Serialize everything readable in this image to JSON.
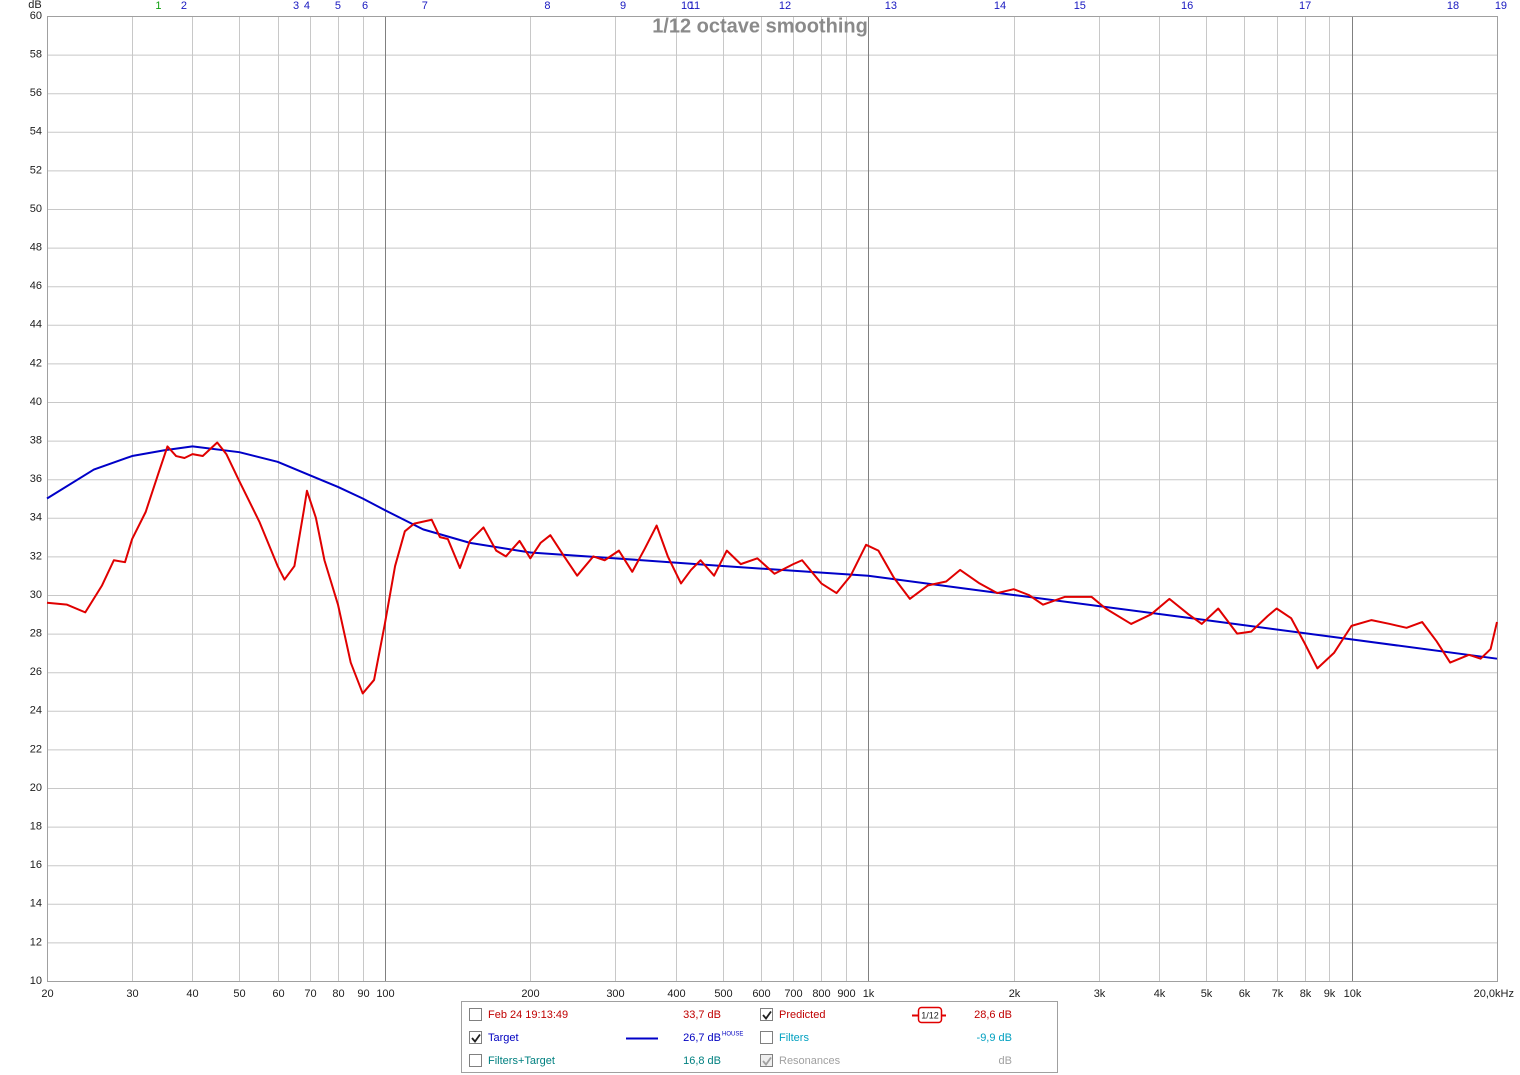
{
  "chart_data": {
    "type": "line",
    "title": "1/12 octave smoothing",
    "y_label": "dB",
    "log_x": true,
    "grid": true,
    "xlim": [
      20,
      20000
    ],
    "ylim": [
      10,
      60
    ],
    "xticks": [
      20,
      30,
      40,
      50,
      60,
      70,
      80,
      90,
      100,
      200,
      300,
      400,
      500,
      600,
      700,
      800,
      900,
      {
        "value": 1000,
        "label": "1k"
      },
      {
        "value": 2000,
        "label": "2k"
      },
      {
        "value": 3000,
        "label": "3k"
      },
      {
        "value": 4000,
        "label": "4k"
      },
      {
        "value": 5000,
        "label": "5k"
      },
      {
        "value": 6000,
        "label": "6k"
      },
      {
        "value": 7000,
        "label": "7k"
      },
      {
        "value": 8000,
        "label": "8k"
      },
      {
        "value": 9000,
        "label": "9k"
      },
      {
        "value": 10000,
        "label": "10k"
      },
      {
        "value": 20000,
        "label": "20,0kHz"
      }
    ],
    "yticks": [
      10,
      12,
      14,
      16,
      18,
      20,
      22,
      24,
      26,
      28,
      30,
      32,
      34,
      36,
      38,
      40,
      42,
      44,
      46,
      48,
      50,
      52,
      54,
      56,
      58,
      60
    ],
    "series": [
      {
        "name": "Predicted",
        "color": "#e00000",
        "x": [
          20,
          22,
          24,
          26,
          27.5,
          29,
          30,
          32,
          34,
          35.5,
          37,
          38.5,
          40,
          42,
          45,
          47,
          50,
          55,
          60,
          62,
          65,
          68,
          69,
          72,
          75,
          80,
          85,
          90,
          95,
          100,
          105,
          110,
          115,
          125,
          130,
          135,
          143,
          150,
          160,
          170,
          178,
          190,
          200,
          210,
          220,
          235,
          250,
          270,
          285,
          305,
          325,
          345,
          365,
          385,
          410,
          430,
          450,
          480,
          510,
          545,
          590,
          640,
          700,
          730,
          800,
          860,
          920,
          990,
          1050,
          1130,
          1220,
          1330,
          1450,
          1550,
          1700,
          1850,
          2000,
          2150,
          2300,
          2550,
          2900,
          3100,
          3500,
          3850,
          4200,
          4600,
          4900,
          5300,
          5800,
          6200,
          6700,
          7000,
          7500,
          8000,
          8500,
          9200,
          10000,
          11000,
          12000,
          13000,
          14000,
          15000,
          16000,
          17500,
          18500,
          19400,
          20000
        ],
        "values": [
          29.6,
          29.5,
          29.1,
          30.5,
          31.8,
          31.7,
          32.9,
          34.3,
          36.3,
          37.7,
          37.2,
          37.1,
          37.3,
          37.2,
          37.9,
          37.3,
          35.9,
          33.8,
          31.5,
          30.8,
          31.5,
          34.4,
          35.4,
          34.0,
          31.8,
          29.5,
          26.5,
          24.9,
          25.6,
          28.5,
          31.5,
          33.3,
          33.7,
          33.9,
          33.0,
          32.9,
          31.4,
          32.8,
          33.5,
          32.3,
          32.0,
          32.8,
          31.9,
          32.7,
          33.1,
          32.0,
          31.0,
          32.0,
          31.8,
          32.3,
          31.2,
          32.4,
          33.6,
          32.0,
          30.6,
          31.3,
          31.8,
          31.0,
          32.3,
          31.6,
          31.9,
          31.1,
          31.6,
          31.8,
          30.6,
          30.1,
          31.0,
          32.6,
          32.3,
          30.9,
          29.8,
          30.5,
          30.7,
          31.3,
          30.6,
          30.1,
          30.3,
          30.0,
          29.5,
          29.9,
          29.9,
          29.3,
          28.5,
          29.0,
          29.8,
          29.0,
          28.5,
          29.3,
          28.0,
          28.1,
          28.9,
          29.3,
          28.8,
          27.5,
          26.2,
          27.0,
          28.4,
          28.7,
          28.5,
          28.3,
          28.6,
          27.6,
          26.5,
          26.9,
          26.7,
          27.2,
          28.6
        ]
      },
      {
        "name": "Target",
        "color": "#0000c8",
        "x": [
          20,
          25,
          30,
          35,
          40,
          50,
          60,
          70,
          80,
          90,
          100,
          120,
          150,
          200,
          300,
          500,
          1000,
          2000,
          5000,
          10000,
          20000
        ],
        "values": [
          35.0,
          36.5,
          37.2,
          37.5,
          37.7,
          37.4,
          36.9,
          36.2,
          35.6,
          35.0,
          34.4,
          33.4,
          32.7,
          32.2,
          31.9,
          31.5,
          31.0,
          30.0,
          28.7,
          27.7,
          26.7
        ]
      }
    ],
    "filter_markers": {
      "labels": [
        "1",
        "2",
        "3",
        "4",
        "5",
        "6",
        "7",
        "8",
        "9",
        "10",
        "11",
        "12",
        "13",
        "14",
        "15",
        "16",
        "17",
        "18",
        "19"
      ],
      "x": [
        34,
        38.4,
        65.5,
        69,
        80,
        91,
        121,
        217,
        311,
        422,
        437,
        673,
        1114,
        1874,
        2741,
        4570,
        8020,
        16220,
        20380
      ],
      "colors": [
        "#10a010",
        "#1818c0",
        "#1818c0",
        "#1818c0",
        "#1818c0",
        "#1818c0",
        "#1818c0",
        "#1818c0",
        "#1818c0",
        "#1818c0",
        "#1818c0",
        "#1818c0",
        "#1818c0",
        "#1818c0",
        "#1818c0",
        "#1818c0",
        "#1818c0",
        "#1818c0",
        "#1818c0"
      ]
    }
  },
  "legend_panel": {
    "items": [
      {
        "label": "Feb 24 19:13:49",
        "readout": "33,7 dB",
        "checked": false,
        "enabled": true,
        "color": "#c00000"
      },
      {
        "series": 1,
        "readout": "26,7 dB",
        "superscript": "HOUSE",
        "checked": true,
        "enabled": true,
        "color": "#0000c0",
        "sample": "line"
      },
      {
        "label": "Filters+Target",
        "readout": "16,8 dB",
        "checked": false,
        "enabled": true,
        "color": "#008080"
      },
      {
        "series": 0,
        "readout": "28,6 dB",
        "checked": true,
        "enabled": true,
        "color": "#c00000",
        "sample": "smoothing-icon",
        "icon_label": "1/12"
      },
      {
        "label": "Filters",
        "readout": "-9,9 dB",
        "checked": false,
        "enabled": true,
        "color": "#00a0c0"
      },
      {
        "label": "Resonances",
        "readout": "dB",
        "checked": true,
        "enabled": false,
        "color": "#a0a0a0"
      }
    ]
  }
}
